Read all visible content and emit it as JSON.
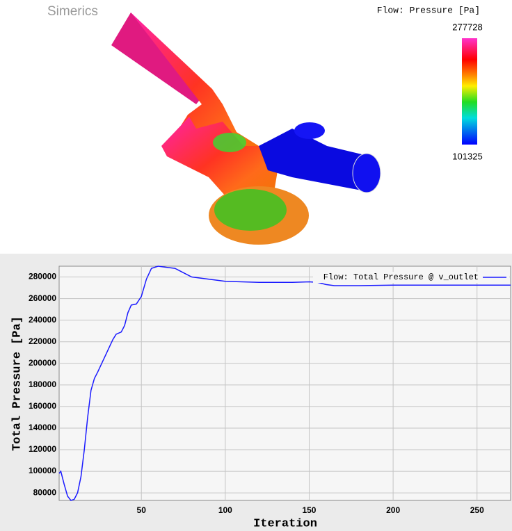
{
  "viewer": {
    "logo": "Simerics",
    "colorbar_title": "Flow: Pressure [Pa]",
    "colorbar_max": "277728",
    "colorbar_min": "101325"
  },
  "chart_data": {
    "type": "line",
    "xlabel": "Iteration",
    "ylabel": "Total Pressure [Pa]",
    "x": [
      1,
      2,
      4,
      6,
      8,
      10,
      12,
      14,
      16,
      18,
      20,
      22,
      24,
      27,
      30,
      33,
      35,
      38,
      40,
      42,
      44,
      47,
      50,
      53,
      56,
      60,
      65,
      70,
      75,
      80,
      90,
      100,
      110,
      120,
      140,
      150,
      155,
      160,
      165,
      180,
      200,
      220,
      250,
      270
    ],
    "series": [
      {
        "name": "Flow: Total Pressure @ v_outlet",
        "color": "#1a1aff",
        "values": [
          98000,
          100000,
          88000,
          77000,
          73000,
          74000,
          80000,
          95000,
          120000,
          150000,
          175000,
          186000,
          192000,
          202000,
          212000,
          222000,
          227000,
          229000,
          235000,
          247000,
          254000,
          255000,
          262000,
          278000,
          288000,
          290000,
          289000,
          288000,
          284000,
          280000,
          278000,
          276000,
          275500,
          275000,
          275000,
          275500,
          275000,
          273000,
          272000,
          272000,
          272500,
          272500,
          272500,
          272500
        ]
      }
    ],
    "xlim": [
      1,
      270
    ],
    "xticks": [
      50,
      100,
      150,
      200,
      250
    ],
    "ylim": [
      73000,
      290000
    ],
    "yticks": [
      80000,
      100000,
      120000,
      140000,
      160000,
      180000,
      200000,
      220000,
      240000,
      260000,
      280000
    ],
    "grid": true,
    "legend": "top-right"
  }
}
